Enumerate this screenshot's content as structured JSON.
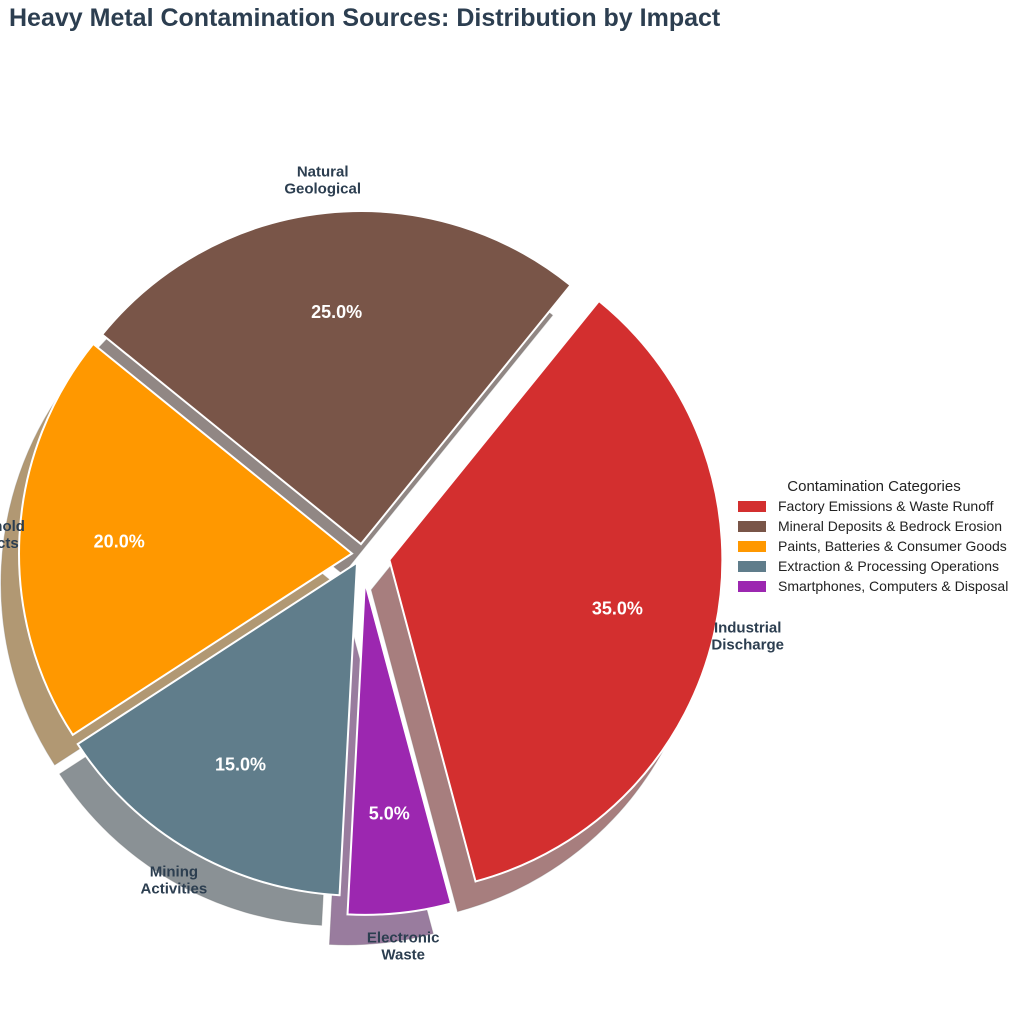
{
  "chart_data": {
    "type": "pie",
    "title": "Heavy Metal Contamination Sources: Distribution by Impact",
    "slices": [
      {
        "label": [
          "Industrial",
          "Discharge"
        ],
        "value": 35.0,
        "percent_label": "35.0%",
        "color": "#d32f2f",
        "exploded": true
      },
      {
        "label": [
          "Electronic",
          "Waste"
        ],
        "value": 5.0,
        "percent_label": "5.0%",
        "color": "#9c27b0",
        "exploded": true
      },
      {
        "label": [
          "Mining",
          "Activities"
        ],
        "value": 15.0,
        "percent_label": "15.0%",
        "color": "#607d8b",
        "exploded": false
      },
      {
        "label": [
          "Household",
          "Products"
        ],
        "value": 20.0,
        "percent_label": "20.0%",
        "color": "#ff9800",
        "exploded": false
      },
      {
        "label": [
          "Natural",
          "Geological"
        ],
        "value": 25.0,
        "percent_label": "25.0%",
        "color": "#795548",
        "exploded": false
      }
    ],
    "legend": {
      "title": "Contamination Categories",
      "placement": "right",
      "entries": [
        {
          "text": "Factory Emissions & Waste Runoff",
          "color": "#d32f2f"
        },
        {
          "text": "Mineral Deposits & Bedrock Erosion",
          "color": "#795548"
        },
        {
          "text": "Paints, Batteries & Consumer Goods",
          "color": "#ff9800"
        },
        {
          "text": "Extraction & Processing Operations",
          "color": "#607d8b"
        },
        {
          "text": "Smartphones, Computers & Disposal",
          "color": "#9c27b0"
        }
      ]
    },
    "shadow": true
  }
}
